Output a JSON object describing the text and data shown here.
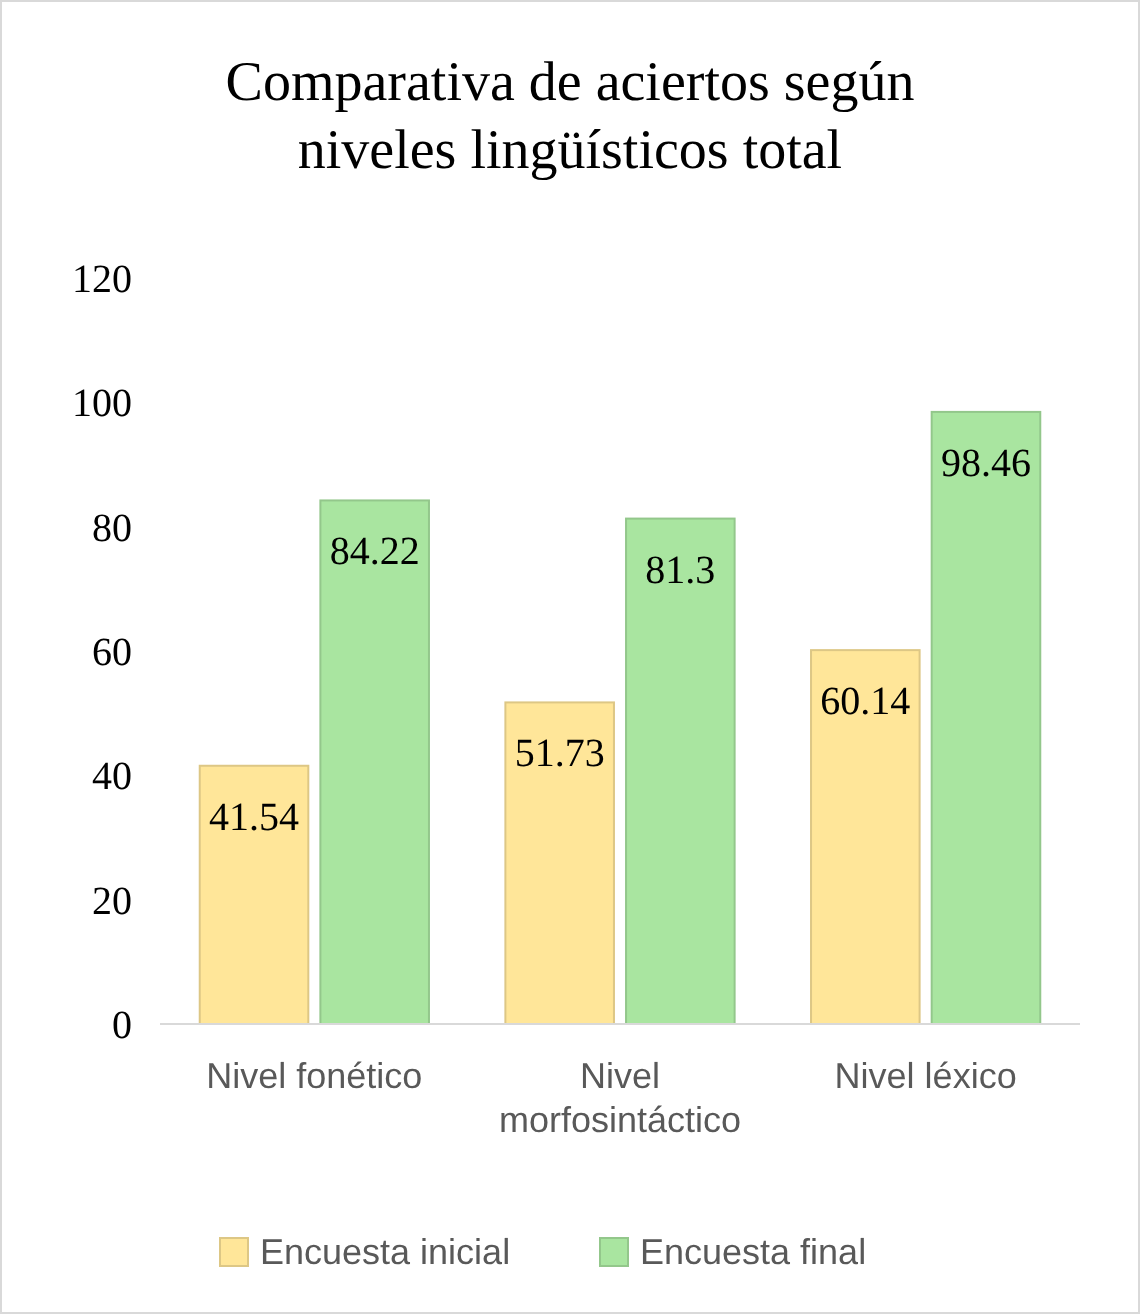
{
  "chart_data": {
    "type": "bar",
    "title": "Comparativa de aciertos según niveles lingüísticos total",
    "categories": [
      "Nivel fonético",
      "Nivel morfosintáctico",
      "Nivel léxico"
    ],
    "series": [
      {
        "name": "Encuesta inicial",
        "color": "#ffe699",
        "values": [
          41.54,
          51.73,
          60.14
        ]
      },
      {
        "name": "Encuesta final",
        "color": "#a9e5a0",
        "values": [
          84.22,
          81.3,
          98.46
        ]
      }
    ],
    "ylim": [
      0,
      120
    ],
    "yticks": [
      0,
      20,
      40,
      60,
      80,
      100,
      120
    ],
    "grid": false,
    "legend": "bottom",
    "data_labels": true
  }
}
